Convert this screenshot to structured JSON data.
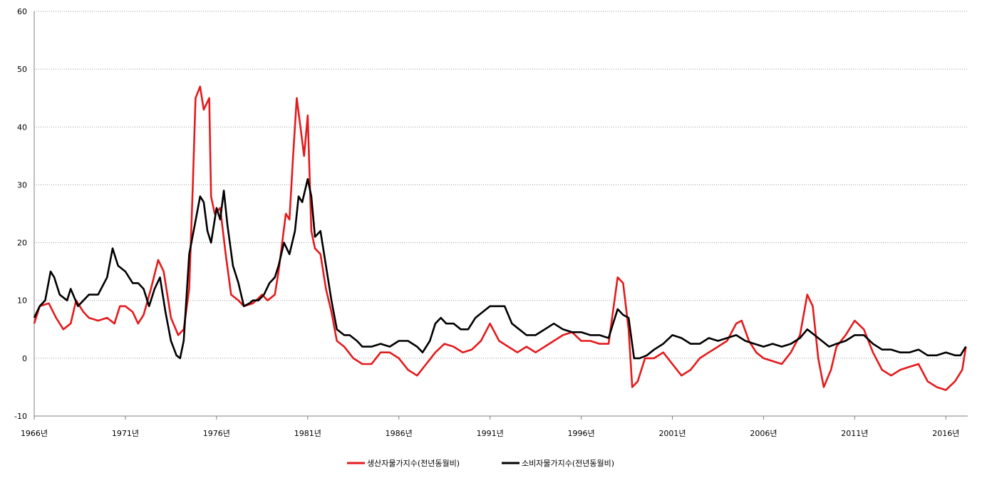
{
  "chart_data": {
    "type": "line",
    "title": "",
    "xlabel": "",
    "ylabel": "",
    "ylim": [
      -10,
      60
    ],
    "yticks": [
      -10,
      0,
      10,
      20,
      30,
      40,
      50,
      60
    ],
    "xlim": [
      1966,
      2017.2
    ],
    "xticks": [
      "1966년",
      "1971년",
      "1976년",
      "1981년",
      "1986년",
      "1991년",
      "1996년",
      "2001년",
      "2006년",
      "2011년",
      "2016년"
    ],
    "grid": "horizontal dotted",
    "legend_position": "bottom",
    "series": [
      {
        "name": "생산자물가지수(전년동월비)",
        "color": "#e41a1c",
        "points": [
          [
            1966.0,
            6
          ],
          [
            1966.3,
            9
          ],
          [
            1966.8,
            9.5
          ],
          [
            1967.2,
            7
          ],
          [
            1967.6,
            5
          ],
          [
            1968.0,
            6
          ],
          [
            1968.3,
            10
          ],
          [
            1968.7,
            8
          ],
          [
            1969.0,
            7
          ],
          [
            1969.5,
            6.5
          ],
          [
            1970.0,
            7
          ],
          [
            1970.4,
            6
          ],
          [
            1970.7,
            9
          ],
          [
            1971.0,
            9
          ],
          [
            1971.4,
            8
          ],
          [
            1971.7,
            6
          ],
          [
            1972.0,
            7.5
          ],
          [
            1972.4,
            12
          ],
          [
            1972.8,
            17
          ],
          [
            1973.1,
            15
          ],
          [
            1973.5,
            7
          ],
          [
            1973.9,
            4
          ],
          [
            1974.2,
            5
          ],
          [
            1974.5,
            12
          ],
          [
            1974.7,
            30
          ],
          [
            1974.85,
            45
          ],
          [
            1975.1,
            47
          ],
          [
            1975.3,
            43
          ],
          [
            1975.6,
            45
          ],
          [
            1975.7,
            28
          ],
          [
            1975.9,
            25
          ],
          [
            1976.2,
            26
          ],
          [
            1976.5,
            18
          ],
          [
            1976.8,
            11
          ],
          [
            1977.2,
            10
          ],
          [
            1977.5,
            9
          ],
          [
            1978.0,
            9.5
          ],
          [
            1978.5,
            11
          ],
          [
            1978.8,
            10
          ],
          [
            1979.2,
            11
          ],
          [
            1979.4,
            15
          ],
          [
            1979.8,
            25
          ],
          [
            1980.0,
            24
          ],
          [
            1980.2,
            35
          ],
          [
            1980.4,
            45
          ],
          [
            1980.6,
            40
          ],
          [
            1980.8,
            35
          ],
          [
            1981.0,
            42
          ],
          [
            1981.2,
            22
          ],
          [
            1981.4,
            19
          ],
          [
            1981.7,
            18
          ],
          [
            1982.0,
            12
          ],
          [
            1982.3,
            8
          ],
          [
            1982.6,
            3
          ],
          [
            1983.0,
            2
          ],
          [
            1983.5,
            0
          ],
          [
            1984.0,
            -1
          ],
          [
            1984.5,
            -1
          ],
          [
            1985.0,
            1
          ],
          [
            1985.5,
            1
          ],
          [
            1986.0,
            0
          ],
          [
            1986.5,
            -2
          ],
          [
            1987.0,
            -3
          ],
          [
            1987.5,
            -1
          ],
          [
            1988.0,
            1
          ],
          [
            1988.5,
            2.5
          ],
          [
            1989.0,
            2
          ],
          [
            1989.5,
            1
          ],
          [
            1990.0,
            1.5
          ],
          [
            1990.5,
            3
          ],
          [
            1991.0,
            6
          ],
          [
            1991.5,
            3
          ],
          [
            1992.0,
            2
          ],
          [
            1992.5,
            1
          ],
          [
            1993.0,
            2
          ],
          [
            1993.5,
            1
          ],
          [
            1994.0,
            2
          ],
          [
            1994.5,
            3
          ],
          [
            1995.0,
            4
          ],
          [
            1995.5,
            4.5
          ],
          [
            1996.0,
            3
          ],
          [
            1996.5,
            3
          ],
          [
            1997.0,
            2.5
          ],
          [
            1997.5,
            2.5
          ],
          [
            1998.0,
            14
          ],
          [
            1998.3,
            13
          ],
          [
            1998.6,
            5
          ],
          [
            1998.8,
            -5
          ],
          [
            1999.1,
            -4
          ],
          [
            1999.5,
            0
          ],
          [
            2000.0,
            0
          ],
          [
            2000.5,
            1
          ],
          [
            2001.0,
            -1
          ],
          [
            2001.5,
            -3
          ],
          [
            2002.0,
            -2
          ],
          [
            2002.5,
            0
          ],
          [
            2003.0,
            1
          ],
          [
            2003.5,
            2
          ],
          [
            2004.0,
            3
          ],
          [
            2004.5,
            6
          ],
          [
            2004.8,
            6.5
          ],
          [
            2005.2,
            3
          ],
          [
            2005.6,
            1
          ],
          [
            2006.0,
            0
          ],
          [
            2006.5,
            -0.5
          ],
          [
            2007.0,
            -1
          ],
          [
            2007.5,
            1
          ],
          [
            2008.0,
            4
          ],
          [
            2008.4,
            11
          ],
          [
            2008.7,
            9
          ],
          [
            2009.0,
            0
          ],
          [
            2009.3,
            -5
          ],
          [
            2009.7,
            -2
          ],
          [
            2010.0,
            2
          ],
          [
            2010.5,
            4
          ],
          [
            2011.0,
            6.5
          ],
          [
            2011.5,
            5
          ],
          [
            2012.0,
            1
          ],
          [
            2012.5,
            -2
          ],
          [
            2013.0,
            -3
          ],
          [
            2013.5,
            -2
          ],
          [
            2014.0,
            -1.5
          ],
          [
            2014.5,
            -1
          ],
          [
            2015.0,
            -4
          ],
          [
            2015.5,
            -5
          ],
          [
            2016.0,
            -5.5
          ],
          [
            2016.5,
            -4
          ],
          [
            2016.9,
            -2
          ],
          [
            2017.1,
            2
          ]
        ]
      },
      {
        "name": "소비자물가지수(전년동월비)",
        "color": "#000000",
        "points": [
          [
            1966.0,
            7
          ],
          [
            1966.3,
            9
          ],
          [
            1966.6,
            10
          ],
          [
            1966.9,
            15
          ],
          [
            1967.1,
            14
          ],
          [
            1967.4,
            11
          ],
          [
            1967.8,
            10
          ],
          [
            1968.0,
            12
          ],
          [
            1968.4,
            9
          ],
          [
            1968.7,
            10
          ],
          [
            1969.0,
            11
          ],
          [
            1969.5,
            11
          ],
          [
            1970.0,
            14
          ],
          [
            1970.3,
            19
          ],
          [
            1970.6,
            16
          ],
          [
            1971.0,
            15
          ],
          [
            1971.4,
            13
          ],
          [
            1971.7,
            13
          ],
          [
            1972.0,
            12
          ],
          [
            1972.3,
            9
          ],
          [
            1972.6,
            12
          ],
          [
            1972.9,
            14
          ],
          [
            1973.2,
            8
          ],
          [
            1973.5,
            3
          ],
          [
            1973.8,
            0.5
          ],
          [
            1974.0,
            0
          ],
          [
            1974.2,
            3
          ],
          [
            1974.5,
            18
          ],
          [
            1974.8,
            23
          ],
          [
            1975.1,
            28
          ],
          [
            1975.3,
            27
          ],
          [
            1975.5,
            22
          ],
          [
            1975.7,
            20
          ],
          [
            1976.0,
            26
          ],
          [
            1976.2,
            24
          ],
          [
            1976.4,
            29
          ],
          [
            1976.6,
            23
          ],
          [
            1976.9,
            16
          ],
          [
            1977.2,
            13
          ],
          [
            1977.5,
            9
          ],
          [
            1977.8,
            9.5
          ],
          [
            1978.0,
            10
          ],
          [
            1978.3,
            10
          ],
          [
            1978.6,
            11
          ],
          [
            1978.9,
            13
          ],
          [
            1979.2,
            14
          ],
          [
            1979.4,
            16
          ],
          [
            1979.7,
            20
          ],
          [
            1980.0,
            18
          ],
          [
            1980.3,
            22
          ],
          [
            1980.5,
            28
          ],
          [
            1980.7,
            27
          ],
          [
            1981.0,
            31
          ],
          [
            1981.2,
            28
          ],
          [
            1981.4,
            21
          ],
          [
            1981.7,
            22
          ],
          [
            1982.0,
            16
          ],
          [
            1982.3,
            10
          ],
          [
            1982.6,
            5
          ],
          [
            1983.0,
            4
          ],
          [
            1983.3,
            4
          ],
          [
            1983.7,
            3
          ],
          [
            1984.0,
            2
          ],
          [
            1984.5,
            2
          ],
          [
            1985.0,
            2.5
          ],
          [
            1985.5,
            2
          ],
          [
            1986.0,
            3
          ],
          [
            1986.5,
            3
          ],
          [
            1987.0,
            2
          ],
          [
            1987.3,
            1
          ],
          [
            1987.7,
            3
          ],
          [
            1988.0,
            6
          ],
          [
            1988.3,
            7
          ],
          [
            1988.6,
            6
          ],
          [
            1989.0,
            6
          ],
          [
            1989.4,
            5
          ],
          [
            1989.8,
            5
          ],
          [
            1990.2,
            7
          ],
          [
            1990.6,
            8
          ],
          [
            1991.0,
            9
          ],
          [
            1991.4,
            9
          ],
          [
            1991.8,
            9
          ],
          [
            1992.2,
            6
          ],
          [
            1992.6,
            5
          ],
          [
            1993.0,
            4
          ],
          [
            1993.5,
            4
          ],
          [
            1994.0,
            5
          ],
          [
            1994.5,
            6
          ],
          [
            1995.0,
            5
          ],
          [
            1995.5,
            4.5
          ],
          [
            1996.0,
            4.5
          ],
          [
            1996.5,
            4
          ],
          [
            1997.0,
            4
          ],
          [
            1997.5,
            3.5
          ],
          [
            1998.0,
            8.5
          ],
          [
            1998.3,
            7.5
          ],
          [
            1998.6,
            7
          ],
          [
            1998.9,
            0
          ],
          [
            1999.2,
            0
          ],
          [
            1999.6,
            0.5
          ],
          [
            2000.0,
            1.5
          ],
          [
            2000.5,
            2.5
          ],
          [
            2001.0,
            4
          ],
          [
            2001.5,
            3.5
          ],
          [
            2002.0,
            2.5
          ],
          [
            2002.5,
            2.5
          ],
          [
            2003.0,
            3.5
          ],
          [
            2003.5,
            3
          ],
          [
            2004.0,
            3.5
          ],
          [
            2004.5,
            4
          ],
          [
            2005.0,
            3
          ],
          [
            2005.5,
            2.5
          ],
          [
            2006.0,
            2
          ],
          [
            2006.5,
            2.5
          ],
          [
            2007.0,
            2
          ],
          [
            2007.5,
            2.5
          ],
          [
            2008.0,
            3.5
          ],
          [
            2008.4,
            5
          ],
          [
            2008.8,
            4
          ],
          [
            2009.2,
            3
          ],
          [
            2009.6,
            2
          ],
          [
            2010.0,
            2.5
          ],
          [
            2010.5,
            3
          ],
          [
            2011.0,
            4
          ],
          [
            2011.5,
            4
          ],
          [
            2012.0,
            2.5
          ],
          [
            2012.5,
            1.5
          ],
          [
            2013.0,
            1.5
          ],
          [
            2013.5,
            1
          ],
          [
            2014.0,
            1
          ],
          [
            2014.5,
            1.5
          ],
          [
            2015.0,
            0.5
          ],
          [
            2015.5,
            0.5
          ],
          [
            2016.0,
            1
          ],
          [
            2016.5,
            0.5
          ],
          [
            2016.8,
            0.5
          ],
          [
            2017.1,
            2
          ]
        ]
      }
    ]
  }
}
